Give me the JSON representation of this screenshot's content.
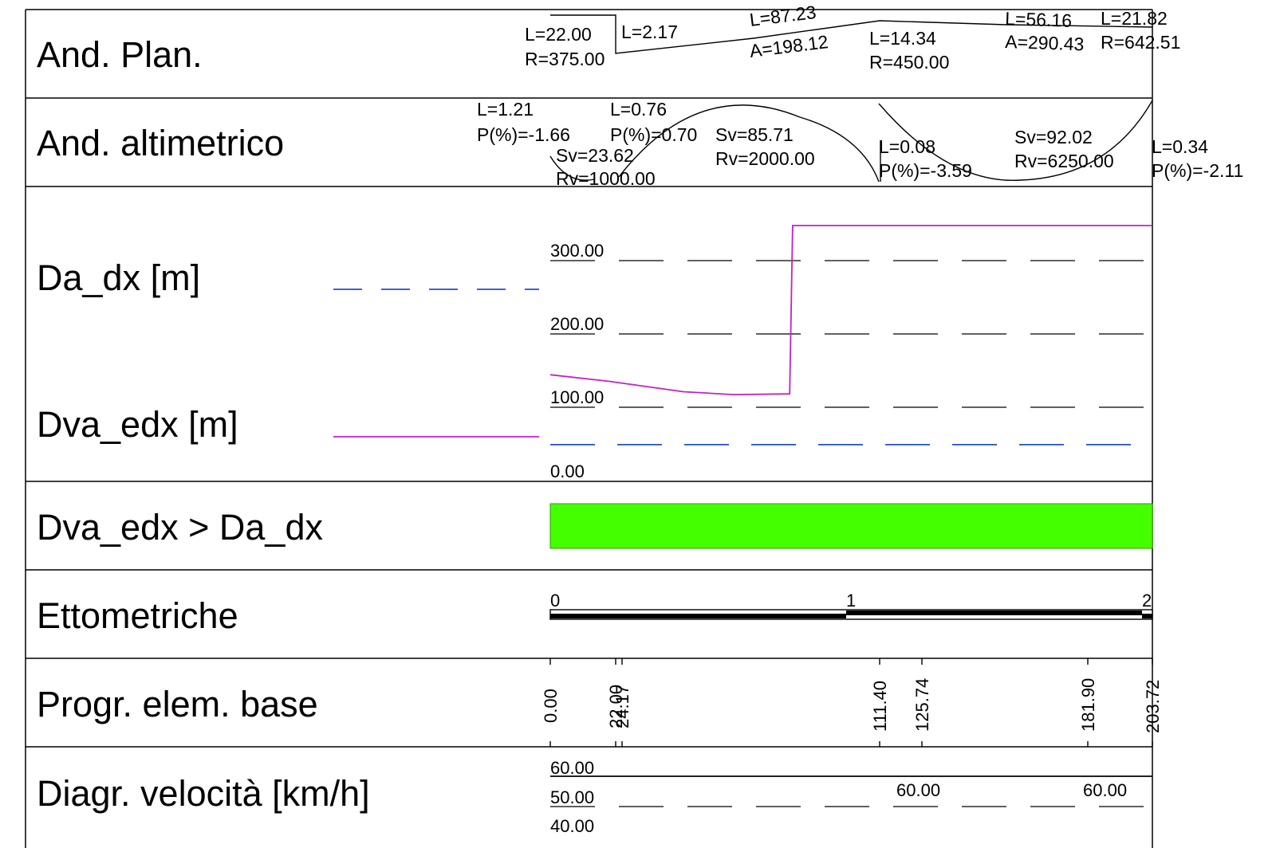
{
  "rows": [
    {
      "label": "And. Plan."
    },
    {
      "label": "And. altimetrico"
    },
    {
      "label": "Da_dx [m]"
    },
    {
      "label": "Dva_edx [m]"
    },
    {
      "label": "Dva_edx > Da_dx"
    },
    {
      "label": "Ettometriche"
    },
    {
      "label": "Progr. elem. base"
    },
    {
      "label": "Diagr. velocità [km/h]"
    }
  ],
  "plan": {
    "elements": [
      {
        "l1": "L=22.00",
        "l2": "R=375.00"
      },
      {
        "l1": "L=2.17"
      },
      {
        "l1": "L=87.23",
        "l2": "A=198.12"
      },
      {
        "l1": "L=14.34",
        "l2": "R=450.00"
      },
      {
        "l1": "L=56.16",
        "l2": "A=290.43"
      },
      {
        "l1": "L=21.82",
        "l2": "R=642.51"
      }
    ]
  },
  "profile": {
    "elements": [
      {
        "l1": "L=1.21",
        "l2": "P(%)=-1.66"
      },
      {
        "l1": "Sv=23.62",
        "l2": "Rv=1000.00"
      },
      {
        "l1": "L=0.76",
        "l2": "P(%)=0.70"
      },
      {
        "l1": "Sv=85.71",
        "l2": "Rv=2000.00"
      },
      {
        "l1": "L=0.08",
        "l2": "P(%)=-3.59"
      },
      {
        "l1": "Sv=92.02",
        "l2": "Rv=6250.00"
      },
      {
        "l1": "L=0.34",
        "l2": "P(%)=-2.11"
      }
    ]
  },
  "distance_chart": {
    "y_ticks": [
      "300.00",
      "200.00",
      "100.00",
      "0.00"
    ],
    "series_colors": {
      "Da_dx": "#1f4fd8",
      "Dva_edx": "#c41fc9"
    },
    "Da_dx_values": [
      [
        0,
        50
      ],
      [
        203.72,
        50
      ]
    ],
    "Dva_edx_values": [
      [
        0,
        145
      ],
      [
        20,
        136
      ],
      [
        45,
        122
      ],
      [
        62,
        118
      ],
      [
        81,
        119
      ],
      [
        82,
        348
      ],
      [
        203.72,
        348
      ]
    ]
  },
  "check": {
    "color": "#44ff00",
    "result": "ok"
  },
  "hectometric": {
    "labels": [
      "0",
      "1",
      "2"
    ]
  },
  "progressive": {
    "labels": [
      "0.00",
      "22.00",
      "24.17",
      "111.40",
      "125.74",
      "181.90",
      "203.72"
    ]
  },
  "speed": {
    "y_ticks": [
      "60.00",
      "50.00",
      "40.00"
    ],
    "line_value": 60,
    "value_labels": [
      "60.00",
      "60.00"
    ]
  }
}
